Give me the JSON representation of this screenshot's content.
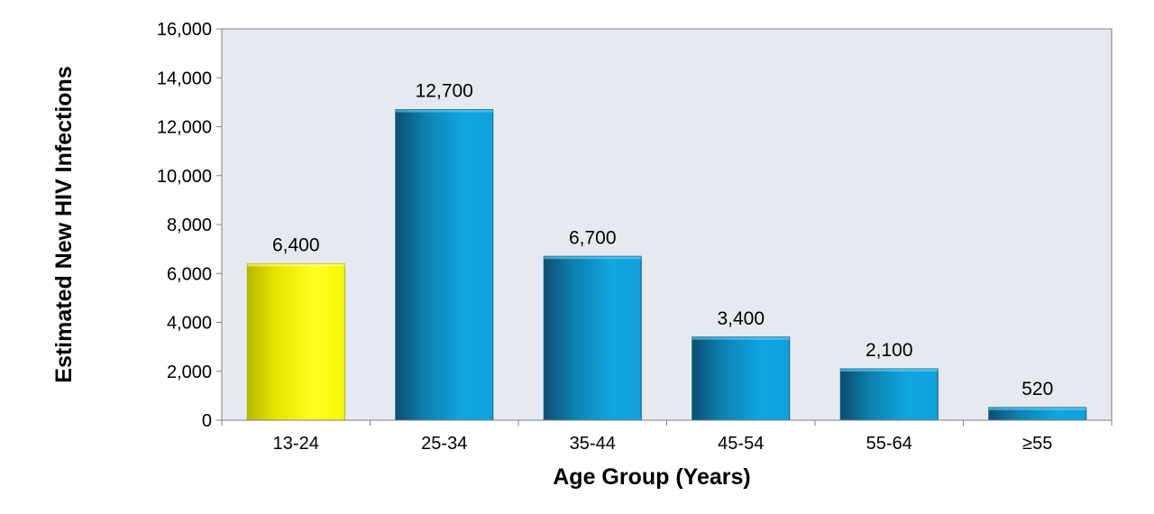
{
  "chart_data": {
    "type": "bar",
    "title": "",
    "xlabel": "Age Group (Years)",
    "ylabel": "Estimated New HIV Infections",
    "categories": [
      "13-24",
      "25-34",
      "35-44",
      "45-54",
      "55-64",
      "≥55"
    ],
    "values": [
      6400,
      12700,
      6700,
      3400,
      2100,
      520
    ],
    "data_labels": [
      "6,400",
      "12,700",
      "6,700",
      "3,400",
      "2,100",
      "520"
    ],
    "ylim": [
      0,
      16000
    ],
    "yticks": [
      0,
      2000,
      4000,
      6000,
      8000,
      10000,
      12000,
      14000,
      16000
    ],
    "ytick_labels": [
      "0",
      "2,000",
      "4,000",
      "6,000",
      "8,000",
      "10,000",
      "12,000",
      "14,000",
      "16,000"
    ],
    "grid": false,
    "legend": "none",
    "highlight_category": "13-24",
    "colors": {
      "plot_background": "#e6eaf0",
      "bar": "#0fa3de",
      "bar_dark": "#0b5e84",
      "highlight_bar": "#ffff1a",
      "highlight_bar_dark": "#b0b000"
    }
  }
}
